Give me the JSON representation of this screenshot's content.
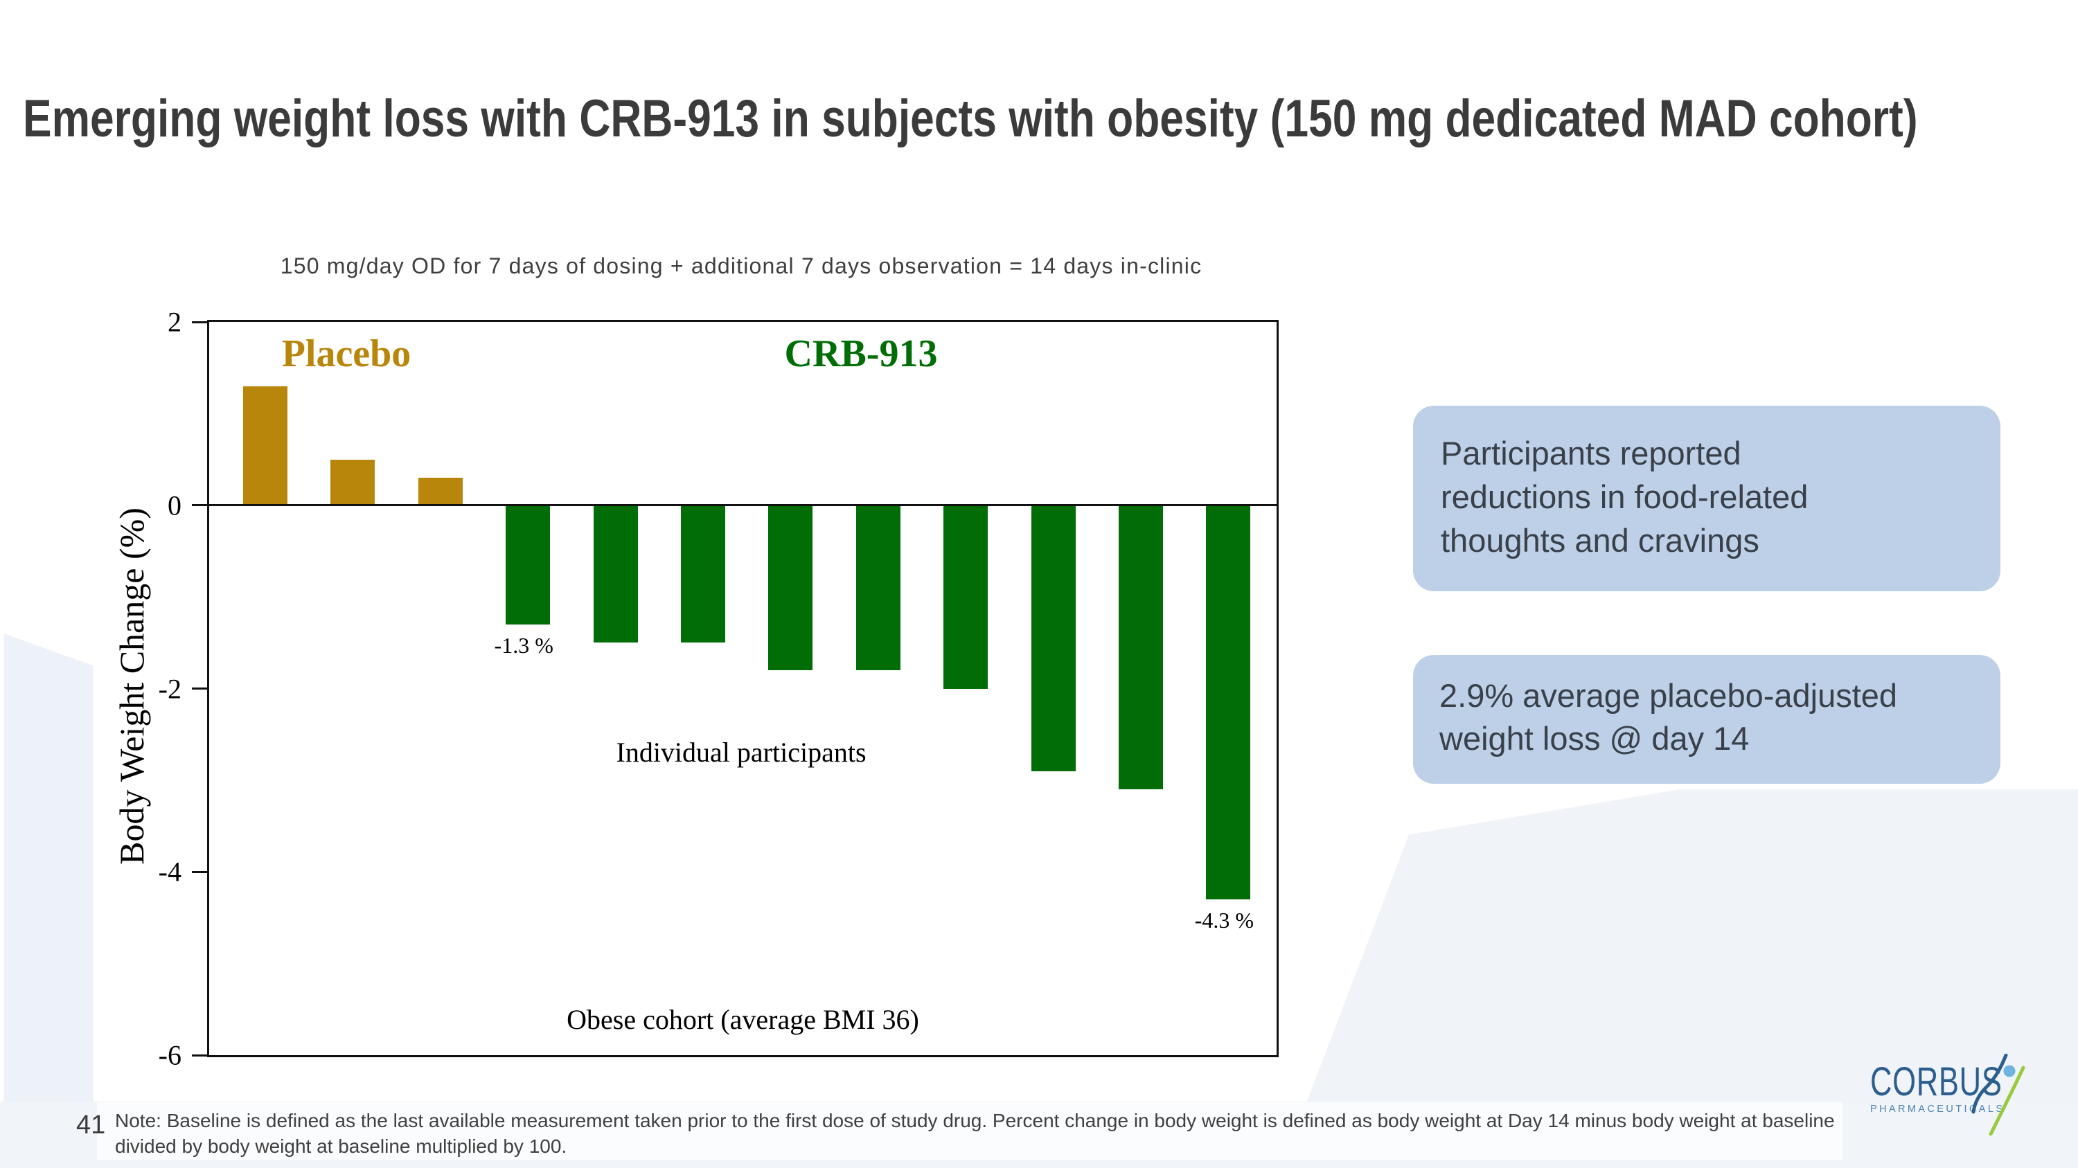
{
  "slide": {
    "title": "Emerging weight loss with CRB-913 in subjects with obesity (150 mg dedicated MAD cohort)",
    "page_number": "41",
    "note_line1": "Note: Baseline is defined as the last available measurement taken prior to the first dose of study drug. Percent change in body weight is defined as body weight at Day 14 minus body weight at baseline",
    "note_line2": "divided by body weight at baseline multiplied by 100."
  },
  "callouts": [
    {
      "lines": [
        "Participants reported",
        "reductions in food-related",
        "thoughts and cravings"
      ]
    },
    {
      "lines": [
        "2.9% average placebo-adjusted",
        "weight loss @ day 14"
      ]
    }
  ],
  "logo": {
    "name": "CORBUS",
    "subtitle": "PHARMACEUTICALS"
  },
  "colors": {
    "placebo_gold": "#B8860B",
    "crb913_green": "#016D06",
    "callout_bg": "#BDD0E8",
    "logo_blue": "#2B5E8E",
    "logo_light_blue": "#4E84B6",
    "logo_green": "#9ACA3C",
    "logo_head_blue": "#6FB3E0",
    "title_text": "#3B3B3B"
  },
  "chart_data": {
    "type": "bar",
    "title": "150 mg/day OD for 7 days of dosing + additional 7 days observation = 14 days in-clinic",
    "ylabel": "Body Weight Change (%)",
    "xlabel": "Individual participants",
    "x_inner_label": "Obese cohort (average BMI 36)",
    "ylim": [
      -6,
      2
    ],
    "yticks": [
      "2",
      "0",
      "-2",
      "-4",
      "-6"
    ],
    "grid": false,
    "legend_position": "inside-top",
    "series": [
      {
        "name": "Placebo",
        "color": "#B8860B",
        "values": [
          1.3,
          0.5,
          0.3
        ]
      },
      {
        "name": "CRB-913",
        "color": "#016D06",
        "values": [
          -1.3,
          -1.5,
          -1.5,
          -1.8,
          -1.8,
          -2.0,
          -2.9,
          -3.1,
          -4.3
        ]
      }
    ],
    "annotations": [
      {
        "bar_index": 3,
        "text": "-1.3 %"
      },
      {
        "bar_index": 11,
        "text": "-4.3 %"
      }
    ]
  }
}
